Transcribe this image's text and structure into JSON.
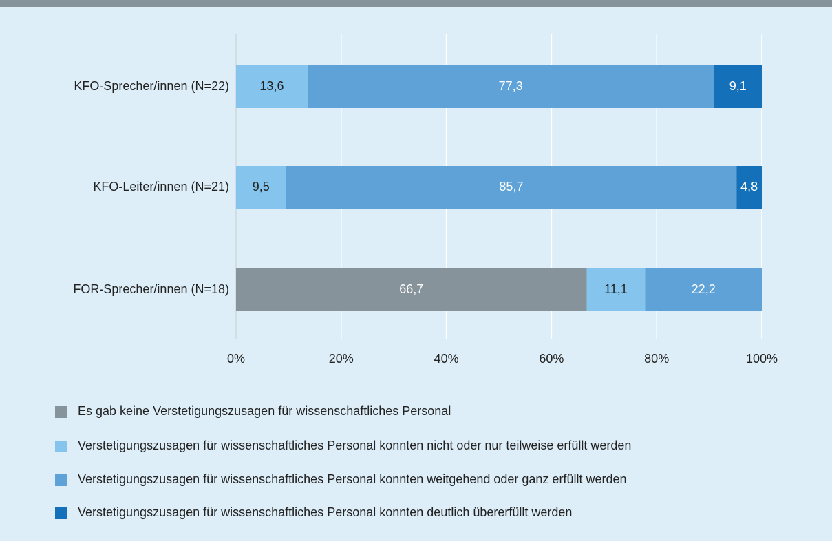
{
  "chart_data": {
    "type": "stacked_bar_horizontal",
    "categories": [
      "KFO-Sprecher/innen (N=22)",
      "KFO-Leiter/innen (N=21)",
      "FOR-Sprecher/innen (N=18)"
    ],
    "series": [
      {
        "name": "Es gab keine Verstetigungszusagen für wissenschaftliches Personal",
        "color": "#87939a",
        "values": [
          null,
          null,
          66.7
        ],
        "value_labels": [
          null,
          null,
          "66,7"
        ]
      },
      {
        "name": "Verstetigungszusagen für wissenschaftliches Personal konnten nicht oder nur teilweise erfüllt werden",
        "color": "#85c4ec",
        "values": [
          13.6,
          9.5,
          11.1
        ],
        "value_labels": [
          "13,6",
          "9,5",
          "11,1"
        ]
      },
      {
        "name": "Verstetigungszusagen für wissenschaftliches Personal konnten weitgehend oder ganz erfüllt werden",
        "color": "#5fa2d8",
        "values": [
          77.3,
          85.7,
          22.2
        ],
        "value_labels": [
          "77,3",
          "85,7",
          "22,2"
        ]
      },
      {
        "name": "Verstetigungszusagen für wissenschaftliches Personal konnten deutlich übererfüllt werden",
        "color": "#1470b8",
        "values": [
          9.1,
          4.8,
          null
        ],
        "value_labels": [
          "9,1",
          "4,8",
          null
        ]
      }
    ],
    "xlim": [
      0,
      100
    ],
    "xticks": [
      {
        "value": 0,
        "label": "0%"
      },
      {
        "value": 20,
        "label": "20%"
      },
      {
        "value": 40,
        "label": "40%"
      },
      {
        "value": 60,
        "label": "60%"
      },
      {
        "value": 80,
        "label": "80%"
      },
      {
        "value": 100,
        "label": "100%"
      }
    ],
    "grid": true
  }
}
